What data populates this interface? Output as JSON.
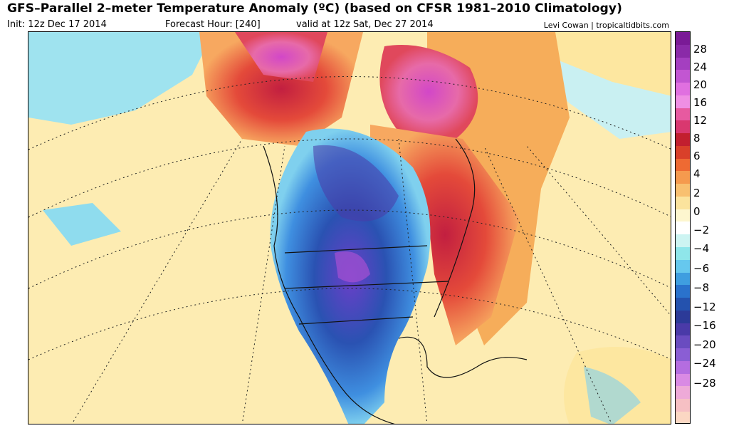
{
  "title": "GFS–Parallel 2–meter Temperature Anomaly (ºC) (based on CFSR 1981–2010 Climatology)",
  "init": "Init: 12z Dec 17 2014",
  "forecast_hour": "Forecast Hour: [240]",
  "valid": "valid at 12z Sat, Dec 27 2014",
  "credit": "Levi Cowan | tropicaltidbits.com",
  "colorbar": {
    "swatches": [
      "#7a1a96",
      "#8a2aa8",
      "#a43fc0",
      "#c256d2",
      "#e070e0",
      "#ef8fe4",
      "#e75aa0",
      "#d9386f",
      "#c21f2f",
      "#d9402a",
      "#ee6a33",
      "#f59a4e",
      "#f8c070",
      "#fbe39d",
      "#fdf6cf",
      "#ffffff",
      "#cdf4f2",
      "#8fe6ea",
      "#66c8ee",
      "#3f9ee0",
      "#2a72cc",
      "#2452ae",
      "#2c3a98",
      "#4a3aa8",
      "#6a4cc0",
      "#8a5ed4",
      "#b46de0",
      "#d98ae4",
      "#eeaad8",
      "#f6c0c4",
      "#fbd7c3"
    ],
    "tick_labels": [
      "28",
      "24",
      "20",
      "16",
      "12",
      "8",
      "6",
      "4",
      "2",
      "0",
      "−2",
      "−4",
      "−6",
      "−8",
      "−12",
      "−16",
      "−20",
      "−24",
      "−28"
    ]
  },
  "map": {
    "land_color": "#2e5fb8",
    "warm_color": "#f08a45",
    "hot_color": "#d4305a",
    "cold_color": "#4a3aa8"
  }
}
